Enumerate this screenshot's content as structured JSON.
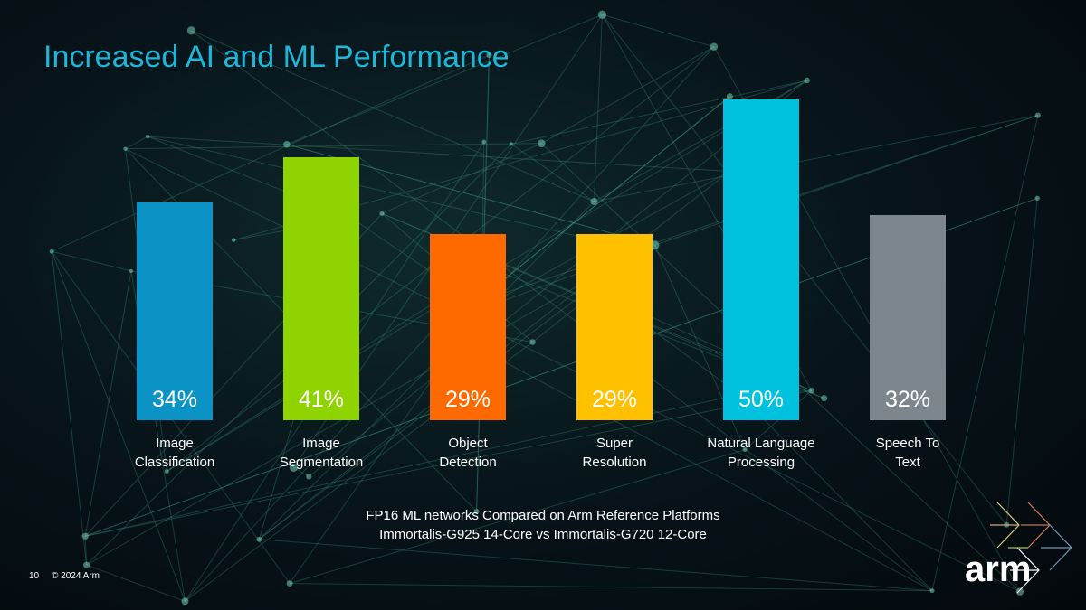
{
  "chart_data": {
    "type": "bar",
    "title": "Increased AI and ML Performance",
    "categories": [
      "Image Classification",
      "Image Segmentation",
      "Object Detection",
      "Super Resolution",
      "Natural Language Processing",
      "Speech To Text"
    ],
    "category_lines": [
      [
        "Image",
        "Classification"
      ],
      [
        "Image",
        "Segmentation"
      ],
      [
        "Object",
        "Detection"
      ],
      [
        "Super",
        "Resolution"
      ],
      [
        "Natural Language",
        "Processing"
      ],
      [
        "Speech To",
        "Text"
      ]
    ],
    "values": [
      34,
      41,
      29,
      29,
      50,
      32
    ],
    "value_labels": [
      "34%",
      "41%",
      "29%",
      "29%",
      "50%",
      "32%"
    ],
    "colors": [
      "#0a93c4",
      "#8fd400",
      "#ff6a00",
      "#ffc000",
      "#00c1de",
      "#7d868c"
    ],
    "ylim": [
      0,
      50
    ],
    "xlabel": "",
    "ylabel": "",
    "grid": false
  },
  "footnote": [
    "FP16 ML networks Compared on Arm Reference Platforms",
    "Immortalis-G925 14-Core vs Immortalis-G720 12-Core"
  ],
  "page_number": "10",
  "copyright": "© 2024 Arm",
  "logo_text": "arm"
}
